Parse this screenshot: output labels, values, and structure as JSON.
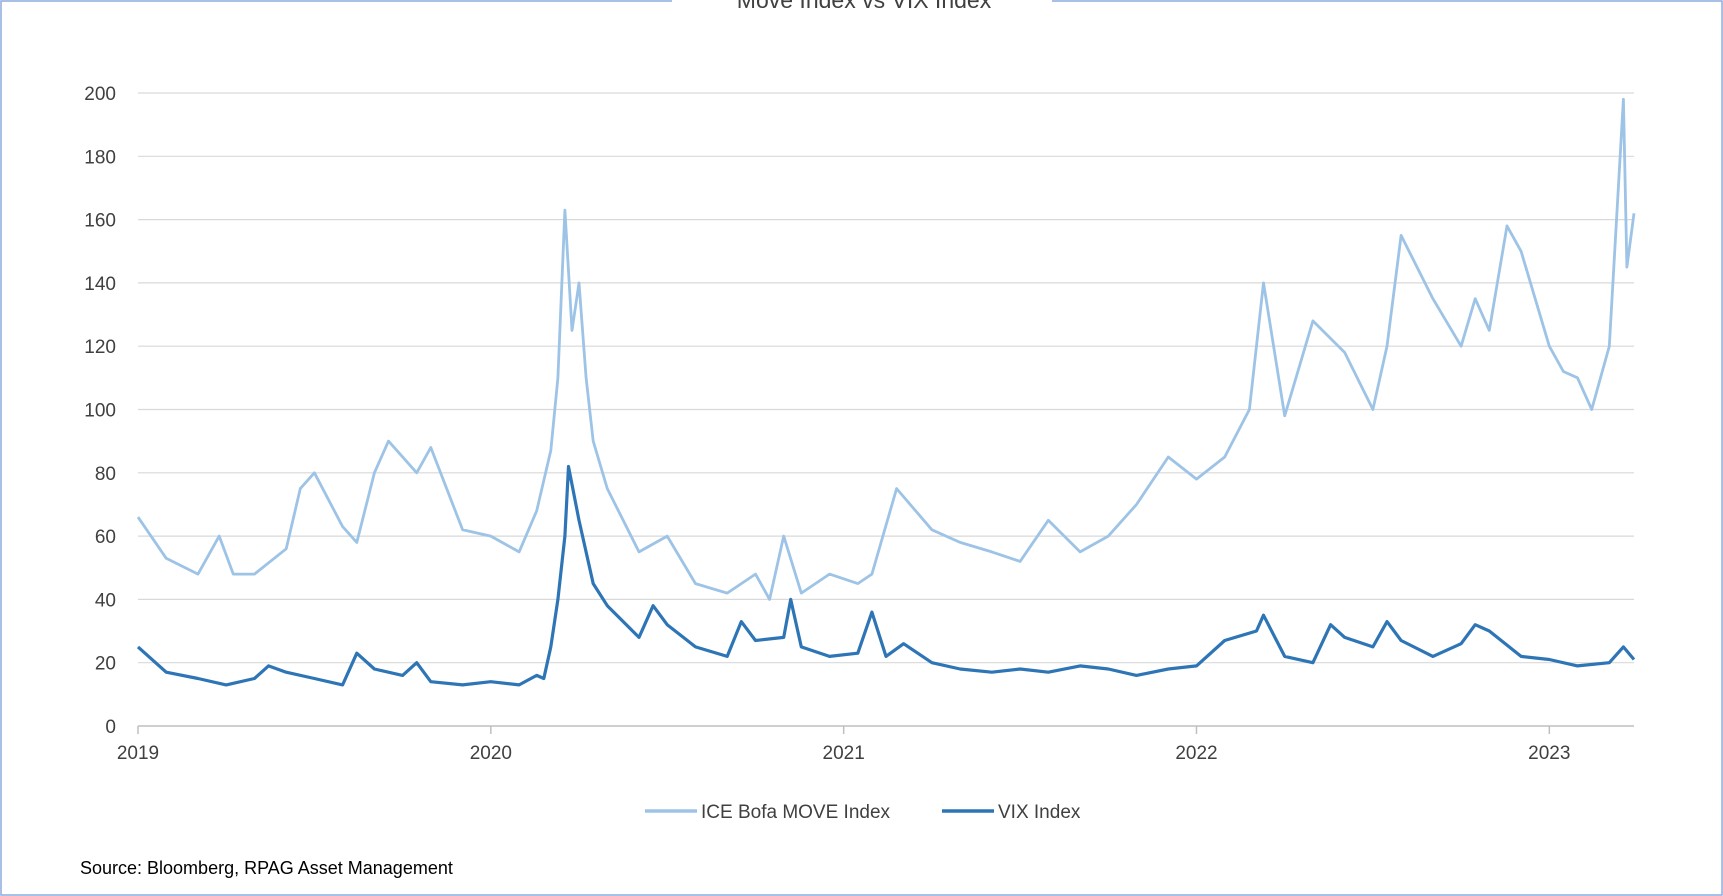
{
  "chart_data": {
    "type": "line",
    "title": "Move Index vs VIX Index",
    "source": "Source: Bloomberg, RPAG Asset Management",
    "xlim": [
      2019,
      2023.24
    ],
    "xticks": [
      2019,
      2020,
      2021,
      2022,
      2023
    ],
    "ylim": [
      0,
      200
    ],
    "yticks": [
      0,
      20,
      40,
      60,
      80,
      100,
      120,
      140,
      160,
      180,
      200
    ],
    "grid": true,
    "series": [
      {
        "name": "ICE Bofa MOVE Index",
        "color": "#9dc3e6",
        "x": [
          2019.0,
          2019.08,
          2019.17,
          2019.23,
          2019.27,
          2019.33,
          2019.42,
          2019.46,
          2019.5,
          2019.58,
          2019.62,
          2019.67,
          2019.71,
          2019.79,
          2019.83,
          2019.92,
          2020.0,
          2020.08,
          2020.13,
          2020.17,
          2020.19,
          2020.21,
          2020.23,
          2020.25,
          2020.27,
          2020.29,
          2020.33,
          2020.42,
          2020.5,
          2020.58,
          2020.67,
          2020.75,
          2020.79,
          2020.83,
          2020.88,
          2020.96,
          2021.04,
          2021.08,
          2021.15,
          2021.25,
          2021.33,
          2021.42,
          2021.5,
          2021.58,
          2021.67,
          2021.75,
          2021.83,
          2021.92,
          2022.0,
          2022.08,
          2022.15,
          2022.19,
          2022.25,
          2022.33,
          2022.42,
          2022.5,
          2022.54,
          2022.58,
          2022.67,
          2022.75,
          2022.79,
          2022.83,
          2022.88,
          2022.92,
          2023.0,
          2023.04,
          2023.08,
          2023.12,
          2023.17,
          2023.21,
          2023.22,
          2023.24
        ],
        "values": [
          66,
          53,
          48,
          60,
          48,
          48,
          56,
          75,
          80,
          63,
          58,
          80,
          90,
          80,
          88,
          62,
          60,
          55,
          68,
          87,
          110,
          163,
          125,
          140,
          110,
          90,
          75,
          55,
          60,
          45,
          42,
          48,
          40,
          60,
          42,
          48,
          45,
          48,
          75,
          62,
          58,
          55,
          52,
          65,
          55,
          60,
          70,
          85,
          78,
          85,
          100,
          140,
          98,
          128,
          118,
          100,
          120,
          155,
          135,
          120,
          135,
          125,
          158,
          150,
          120,
          112,
          110,
          100,
          120,
          198,
          145,
          162
        ]
      },
      {
        "name": "VIX Index",
        "color": "#2e75b6",
        "x": [
          2019.0,
          2019.08,
          2019.17,
          2019.25,
          2019.33,
          2019.37,
          2019.42,
          2019.5,
          2019.58,
          2019.62,
          2019.67,
          2019.75,
          2019.79,
          2019.83,
          2019.92,
          2020.0,
          2020.08,
          2020.13,
          2020.15,
          2020.17,
          2020.19,
          2020.21,
          2020.22,
          2020.25,
          2020.29,
          2020.33,
          2020.42,
          2020.46,
          2020.5,
          2020.58,
          2020.67,
          2020.71,
          2020.75,
          2020.83,
          2020.85,
          2020.88,
          2020.96,
          2021.04,
          2021.08,
          2021.12,
          2021.17,
          2021.25,
          2021.33,
          2021.42,
          2021.5,
          2021.58,
          2021.67,
          2021.75,
          2021.83,
          2021.92,
          2022.0,
          2022.08,
          2022.17,
          2022.19,
          2022.25,
          2022.33,
          2022.38,
          2022.42,
          2022.5,
          2022.54,
          2022.58,
          2022.67,
          2022.75,
          2022.79,
          2022.83,
          2022.92,
          2023.0,
          2023.08,
          2023.17,
          2023.21,
          2023.24
        ],
        "values": [
          25,
          17,
          15,
          13,
          15,
          19,
          17,
          15,
          13,
          23,
          18,
          16,
          20,
          14,
          13,
          14,
          13,
          16,
          15,
          25,
          40,
          60,
          82,
          65,
          45,
          38,
          28,
          38,
          32,
          25,
          22,
          33,
          27,
          28,
          40,
          25,
          22,
          23,
          36,
          22,
          26,
          20,
          18,
          17,
          18,
          17,
          19,
          18,
          16,
          18,
          19,
          27,
          30,
          35,
          22,
          20,
          32,
          28,
          25,
          33,
          27,
          22,
          26,
          32,
          30,
          22,
          21,
          19,
          20,
          25,
          21
        ]
      }
    ]
  }
}
